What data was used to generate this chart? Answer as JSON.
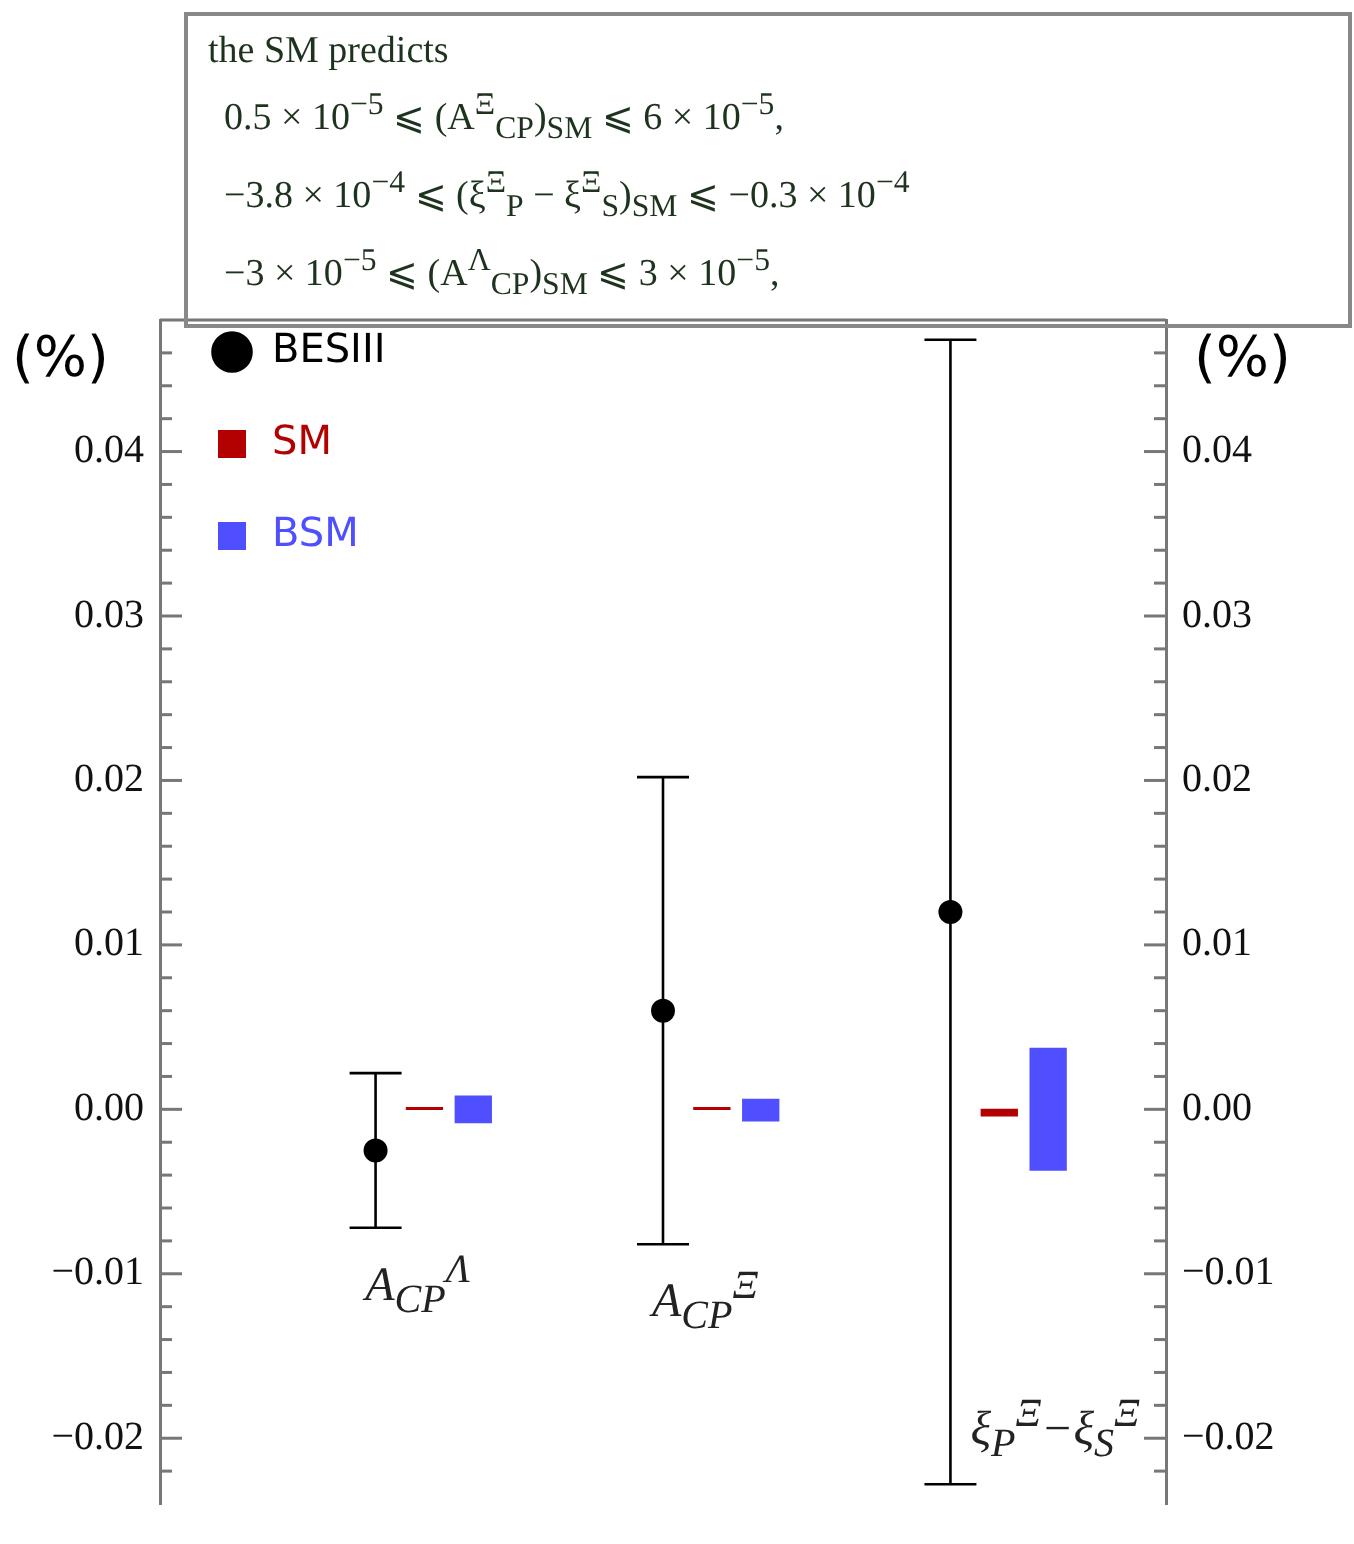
{
  "chart_data": {
    "type": "scatter",
    "categories": [
      "A$_{CP}$$^{Λ}$",
      "A$_{CP}$$^{Ξ}$",
      "ξ$_{P}$$^{Ξ}$−ξ$_{S}$$^{Ξ}$"
    ],
    "series": [
      {
        "name": "BESIII",
        "color": "#000000",
        "marker": "circle",
        "values": [
          -0.0025,
          0.006,
          0.012
        ],
        "errors": [
          0.0047,
          0.0142,
          0.0348
        ]
      },
      {
        "name": "SM",
        "type": "bar",
        "color": "#b30000",
        "base": [
          0,
          0,
          -0.0004
        ],
        "values": [
          0.0001,
          0.0001,
          0.0004
        ]
      },
      {
        "name": "BSM",
        "type": "bar",
        "color": "#4f4fff",
        "base": [
          -0.0008,
          -0.0007,
          -0.0037
        ],
        "values": [
          0.0016,
          0.0013,
          0.0074
        ]
      }
    ],
    "ylabel": "(%)",
    "y2label": "(%)",
    "ylim": [
      -0.024,
      0.048
    ],
    "yticks": [
      {
        "value": -0.022,
        "label": null
      },
      {
        "value": -0.02,
        "label": "−0.02"
      },
      {
        "value": -0.018,
        "label": null
      },
      {
        "value": -0.016,
        "label": null
      },
      {
        "value": -0.014,
        "label": null
      },
      {
        "value": -0.012,
        "label": null
      },
      {
        "value": -0.01,
        "label": "−0.01"
      },
      {
        "value": -0.008,
        "label": null
      },
      {
        "value": -0.006,
        "label": null
      },
      {
        "value": -0.004,
        "label": null
      },
      {
        "value": -0.002,
        "label": null
      },
      {
        "value": 0,
        "label": "0.00"
      },
      {
        "value": 0.002,
        "label": null
      },
      {
        "value": 0.004,
        "label": null
      },
      {
        "value": 0.006,
        "label": null
      },
      {
        "value": 0.008,
        "label": null
      },
      {
        "value": 0.01,
        "label": "0.01"
      },
      {
        "value": 0.012,
        "label": null
      },
      {
        "value": 0.014,
        "label": null
      },
      {
        "value": 0.016,
        "label": null
      },
      {
        "value": 0.018,
        "label": null
      },
      {
        "value": 0.02,
        "label": "0.02"
      },
      {
        "value": 0.022,
        "label": null
      },
      {
        "value": 0.024,
        "label": null
      },
      {
        "value": 0.026,
        "label": null
      },
      {
        "value": 0.028,
        "label": null
      },
      {
        "value": 0.03,
        "label": "0.03"
      },
      {
        "value": 0.032,
        "label": null
      },
      {
        "value": 0.034,
        "label": null
      },
      {
        "value": 0.036,
        "label": null
      },
      {
        "value": 0.038,
        "label": null
      },
      {
        "value": 0.04,
        "label": "0.04"
      },
      {
        "value": 0.042,
        "label": null
      },
      {
        "value": 0.044,
        "label": null
      },
      {
        "value": 0.046,
        "label": null
      }
    ],
    "y2lim": [
      -0.024,
      0.048
    ],
    "y2ticks": [
      {
        "value": -0.022,
        "label": null
      },
      {
        "value": -0.02,
        "label": "−0.02"
      },
      {
        "value": -0.018,
        "label": null
      },
      {
        "value": -0.016,
        "label": null
      },
      {
        "value": -0.014,
        "label": null
      },
      {
        "value": -0.012,
        "label": null
      },
      {
        "value": -0.01,
        "label": "−0.01"
      },
      {
        "value": -0.008,
        "label": null
      },
      {
        "value": -0.006,
        "label": null
      },
      {
        "value": -0.004,
        "label": null
      },
      {
        "value": -0.002,
        "label": null
      },
      {
        "value": 0,
        "label": "0.00"
      },
      {
        "value": 0.002,
        "label": null
      },
      {
        "value": 0.004,
        "label": null
      },
      {
        "value": 0.006,
        "label": null
      },
      {
        "value": 0.008,
        "label": null
      },
      {
        "value": 0.01,
        "label": "0.01"
      },
      {
        "value": 0.012,
        "label": null
      },
      {
        "value": 0.014,
        "label": null
      },
      {
        "value": 0.016,
        "label": null
      },
      {
        "value": 0.018,
        "label": null
      },
      {
        "value": 0.02,
        "label": "0.02"
      },
      {
        "value": 0.022,
        "label": null
      },
      {
        "value": 0.024,
        "label": null
      },
      {
        "value": 0.026,
        "label": null
      },
      {
        "value": 0.028,
        "label": null
      },
      {
        "value": 0.03,
        "label": "0.03"
      },
      {
        "value": 0.032,
        "label": null
      },
      {
        "value": 0.034,
        "label": null
      },
      {
        "value": 0.036,
        "label": null
      },
      {
        "value": 0.038,
        "label": null
      },
      {
        "value": 0.04,
        "label": "0.04"
      },
      {
        "value": 0.042,
        "label": null
      },
      {
        "value": 0.044,
        "label": null
      },
      {
        "value": 0.046,
        "label": null
      }
    ],
    "grid": false,
    "legend": "top left",
    "annotations": [
      "the SM predicts",
      "0.5 × 10$^{−5}$ ⩽ (A$^{Ξ}$$_{CP}$)$_{SM}$ ⩽ 6 × 10$^{−5}$,",
      "−3.8 × 10$^{−4}$ ⩽ (ξ$^{Ξ}$$_{P}$ − ξ$^{Ξ}$$_{S}$)$_{SM}$ ⩽ −0.3 × 10$^{−4}$",
      "−3 × 10$^{−5}$ ⩽ (A$^{Λ}$$_{CP}$)$_{SM}$ ⩽ 3 × 10$^{−5}$,"
    ]
  }
}
